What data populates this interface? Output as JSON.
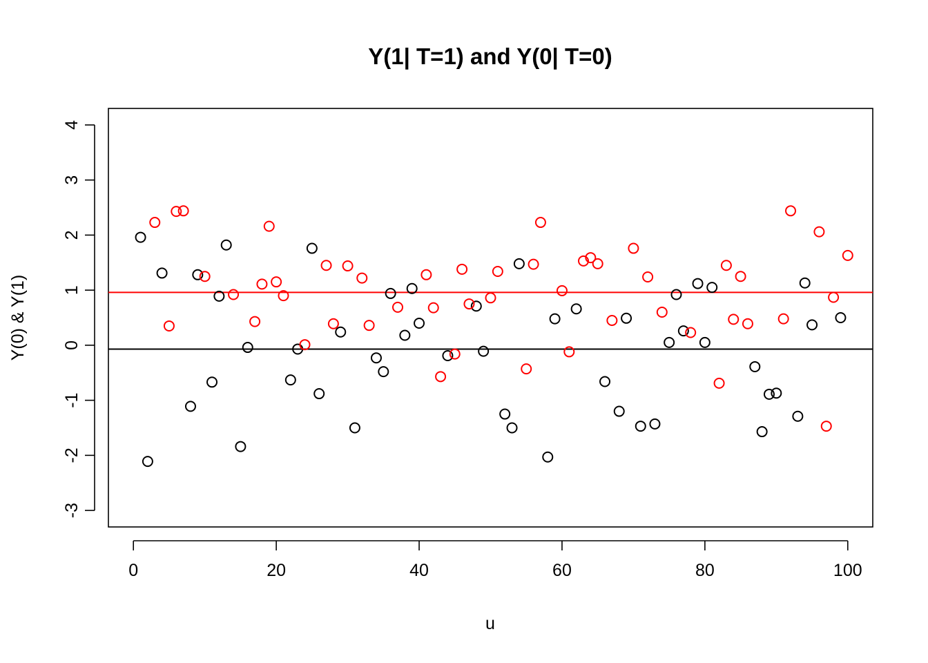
{
  "chart_data": {
    "type": "scatter",
    "title": "Y(1| T=1) and Y(0| T=0)",
    "xlabel": "u",
    "ylabel": "Y(0) & Y(1)",
    "xlim": [
      -3.5,
      103.5
    ],
    "ylim": [
      -3.3,
      4.3
    ],
    "xticks": [
      0,
      20,
      40,
      60,
      80,
      100
    ],
    "yticks": [
      -3,
      -2,
      -1,
      0,
      1,
      2,
      3,
      4
    ],
    "grid": false,
    "marker": "open-circle",
    "series": [
      {
        "color": "#000000",
        "x": [
          1,
          2,
          4,
          8,
          9,
          11,
          12,
          13,
          15,
          16,
          22,
          23,
          25,
          26,
          29,
          31,
          34,
          35,
          36,
          38,
          39,
          40,
          44,
          48,
          49,
          52,
          53,
          54,
          58,
          59,
          62,
          66,
          68,
          69,
          71,
          73,
          75,
          76,
          77,
          79,
          80,
          81,
          87,
          88,
          89,
          90,
          93,
          94,
          95,
          99
        ],
        "y": [
          1.96,
          -2.11,
          1.31,
          -1.11,
          1.28,
          -0.67,
          0.89,
          1.82,
          -1.84,
          -0.04,
          -0.63,
          -0.07,
          1.76,
          -0.88,
          0.24,
          -1.5,
          -0.23,
          -0.48,
          0.94,
          0.18,
          1.03,
          0.4,
          -0.19,
          0.71,
          -0.11,
          -1.25,
          -1.5,
          1.48,
          -2.03,
          0.48,
          0.66,
          -0.66,
          -1.2,
          0.49,
          -1.47,
          -1.43,
          0.05,
          0.92,
          0.26,
          1.12,
          0.05,
          1.05,
          -0.39,
          -1.57,
          -0.89,
          -0.87,
          -1.29,
          1.13,
          0.37,
          0.5
        ]
      },
      {
        "color": "#ff0000",
        "x": [
          3,
          5,
          6,
          7,
          10,
          14,
          17,
          18,
          19,
          20,
          21,
          24,
          27,
          28,
          30,
          32,
          33,
          37,
          41,
          42,
          43,
          45,
          46,
          47,
          50,
          51,
          55,
          56,
          57,
          60,
          61,
          63,
          64,
          65,
          67,
          70,
          72,
          74,
          78,
          82,
          83,
          84,
          85,
          86,
          91,
          92,
          96,
          97,
          98,
          100
        ],
        "y": [
          2.23,
          0.35,
          2.43,
          2.44,
          1.25,
          0.92,
          0.43,
          1.11,
          2.16,
          1.15,
          0.9,
          0.01,
          1.45,
          0.39,
          1.44,
          1.22,
          0.36,
          0.69,
          1.28,
          0.68,
          -0.57,
          -0.16,
          1.38,
          0.75,
          0.86,
          1.34,
          -0.43,
          1.47,
          2.23,
          0.99,
          -0.12,
          1.53,
          1.59,
          1.48,
          0.45,
          1.76,
          1.24,
          0.6,
          0.23,
          -0.69,
          1.45,
          0.47,
          1.25,
          0.39,
          0.48,
          2.44,
          2.06,
          -1.47,
          0.87,
          1.63
        ]
      }
    ],
    "reference_lines": [
      {
        "y": -0.07,
        "color": "#000000"
      },
      {
        "y": 0.96,
        "color": "#ff0000"
      }
    ]
  }
}
